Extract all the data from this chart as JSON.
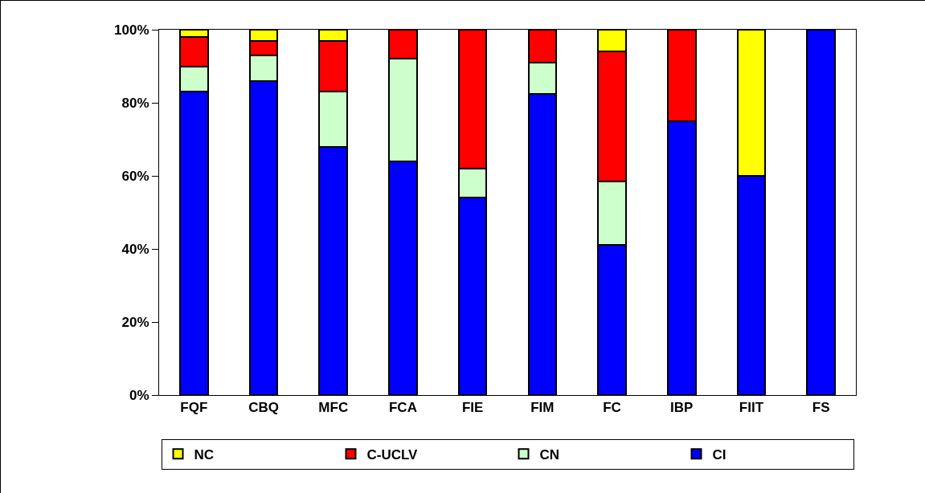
{
  "chart_data": {
    "type": "bar",
    "stacked": true,
    "categories": [
      "FQF",
      "CBQ",
      "MFC",
      "FCA",
      "FIE",
      "FIM",
      "FC",
      "IBP",
      "FIIT",
      "FS"
    ],
    "series": [
      {
        "name": "CI",
        "color": "#0000ff",
        "values": [
          83,
          86,
          68,
          64,
          54,
          82.5,
          41,
          75,
          60,
          100
        ]
      },
      {
        "name": "CN",
        "color": "#ccffcc",
        "values": [
          7,
          7,
          15,
          28,
          8,
          8.5,
          17.5,
          null,
          null,
          null
        ]
      },
      {
        "name": "C-UCLV",
        "color": "#ff0000",
        "values": [
          8,
          4,
          14,
          8,
          38,
          9,
          35.5,
          25,
          null,
          null
        ]
      },
      {
        "name": "NC",
        "color": "#ffff00",
        "values": [
          2,
          3,
          3,
          null,
          null,
          null,
          6,
          null,
          40,
          null
        ]
      }
    ],
    "ylim": [
      0,
      100
    ],
    "yticks": [
      {
        "value": 0,
        "label": "0%"
      },
      {
        "value": 20,
        "label": "20%"
      },
      {
        "value": 40,
        "label": "40%"
      },
      {
        "value": 60,
        "label": "60%"
      },
      {
        "value": 80,
        "label": "80%"
      },
      {
        "value": 100,
        "label": "100%"
      }
    ],
    "grid": false,
    "legend": "bottom"
  }
}
